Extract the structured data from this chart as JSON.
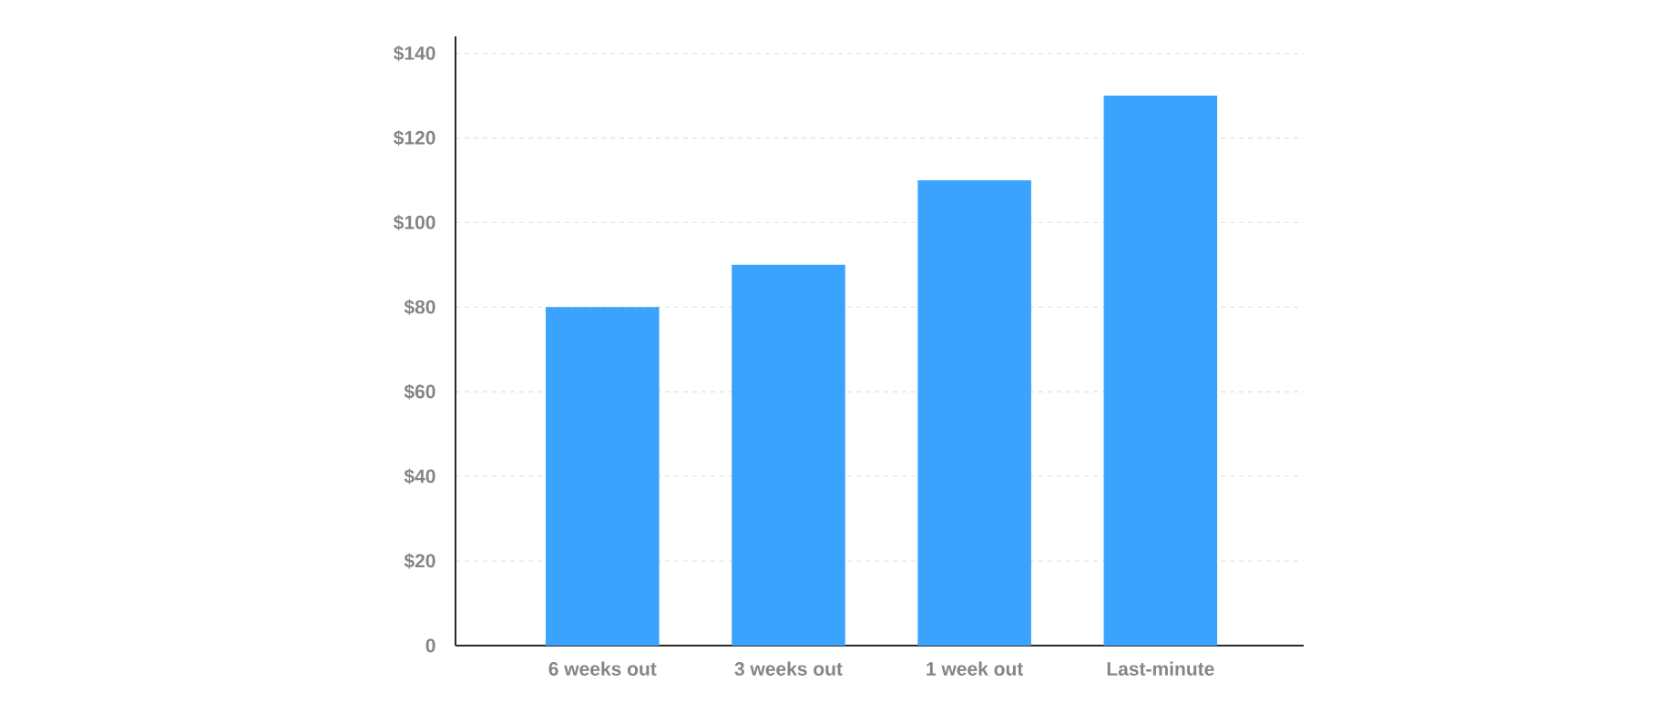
{
  "chart_data": {
    "type": "bar",
    "categories": [
      "6 weeks out",
      "3 weeks out",
      "1 week out",
      "Last-minute"
    ],
    "values": [
      80,
      90,
      110,
      130
    ],
    "color": "#3aa3fd",
    "ylim": [
      0,
      144
    ],
    "yticks": [
      0,
      {
        "value": 20,
        "label": "$20"
      },
      {
        "value": 40,
        "label": "$40"
      },
      {
        "value": 60,
        "label": "$60"
      },
      {
        "value": 80,
        "label": "$80"
      },
      {
        "value": 100,
        "label": "$100"
      },
      {
        "value": 120,
        "label": "$120"
      },
      {
        "value": 140,
        "label": "$140"
      }
    ],
    "grid": "y"
  }
}
